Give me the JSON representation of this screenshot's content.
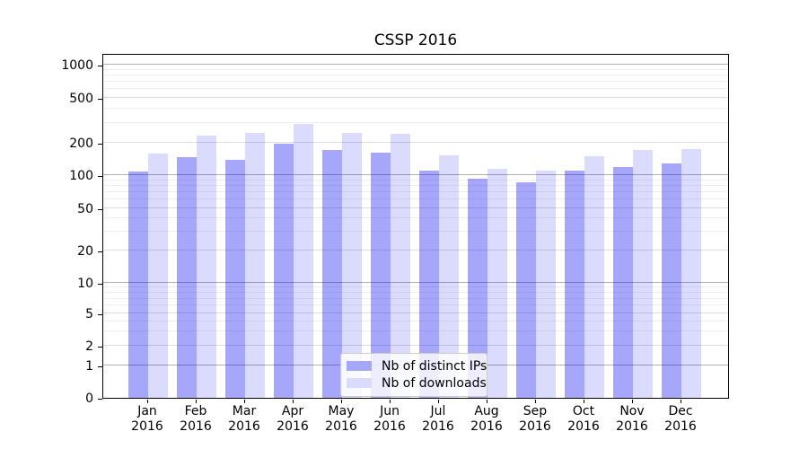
{
  "title": "CSSP 2016",
  "chart_data": {
    "type": "bar",
    "title": "CSSP 2016",
    "categories": [
      "Jan 2016",
      "Feb 2016",
      "Mar 2016",
      "Apr 2016",
      "May 2016",
      "Jun 2016",
      "Jul 2016",
      "Aug 2016",
      "Sep 2016",
      "Oct 2016",
      "Nov 2016",
      "Dec 2016"
    ],
    "series": [
      {
        "name": "Nb of distinct IPs",
        "fill": "rgba(0,0,240,0.35)",
        "swatch": "#a6a6fa",
        "values": [
          107,
          145,
          139,
          195,
          170,
          160,
          110,
          93,
          86,
          110,
          119,
          127
        ]
      },
      {
        "name": "Nb of downloads",
        "fill": "rgba(0,0,240,0.14)",
        "swatch": "#dbdbfd",
        "values": [
          159,
          230,
          242,
          291,
          243,
          237,
          151,
          114,
          110,
          149,
          169,
          172
        ]
      }
    ],
    "xlabel": "",
    "ylabel": "",
    "yscale": "symlog",
    "yticks": [
      0,
      1,
      2,
      5,
      10,
      20,
      50,
      100,
      200,
      500,
      1000
    ],
    "ylim": [
      0,
      1300
    ],
    "grid": true,
    "legend_position": "lower center"
  },
  "colors": {
    "bar_distinct_ips": "#a6a6fa",
    "bar_downloads": "#dbdbfd",
    "grid_major": "#b0b0b0",
    "grid_sub": "#dcdcdc",
    "grid_minor": "#efefef",
    "spine": "#000000"
  }
}
